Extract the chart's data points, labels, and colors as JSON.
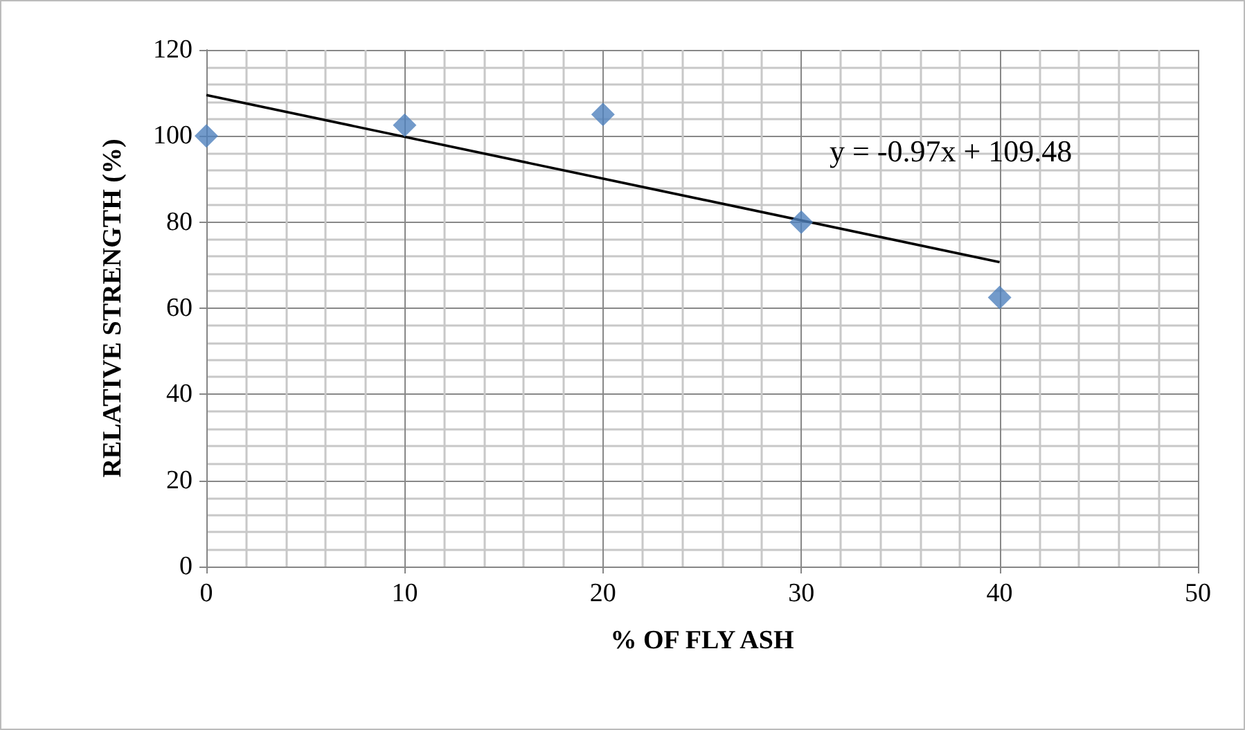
{
  "chart_data": {
    "type": "scatter",
    "xlabel": "% OF FLY ASH",
    "ylabel": "RELATIVE STRENGTH (%)",
    "series": [
      {
        "x": [
          0,
          10,
          20,
          30,
          40
        ],
        "values": [
          100,
          102.5,
          105,
          80,
          62.5
        ],
        "color": "#4f81bd",
        "marker": "diamond"
      },
      {
        "type": "line",
        "x": [
          0,
          40
        ],
        "values": [
          109.5,
          70.7
        ],
        "color": "#000000",
        "marker": "none"
      }
    ],
    "annotations": [
      "y = -0.97x + 109.48"
    ],
    "xlim": [
      0,
      50
    ],
    "xticks": [
      0,
      10,
      20,
      30,
      40,
      50
    ],
    "ylim": [
      0,
      120
    ],
    "yticks": [
      0,
      20,
      40,
      60,
      80,
      100,
      120
    ],
    "grid": true
  }
}
